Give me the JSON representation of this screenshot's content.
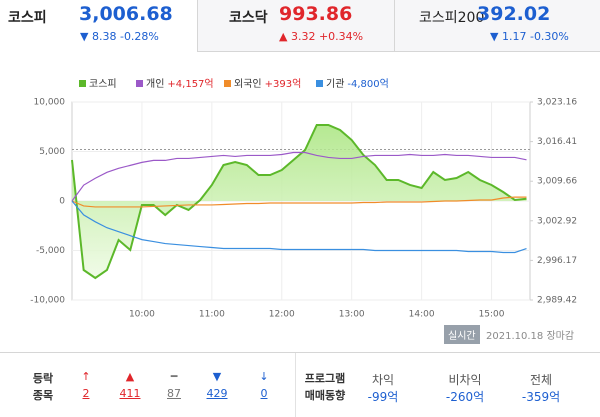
{
  "tabs": [
    {
      "name": "코스피",
      "value": "3,006.68",
      "arrow": "▼",
      "change": "8.38",
      "rate": "-0.28%",
      "color": "#1d5fd0"
    },
    {
      "name": "코스닥",
      "value": "993.86",
      "arrow": "▲",
      "change": "3.32",
      "rate": "+0.34%",
      "color": "#e0262b"
    },
    {
      "name": "코스피200",
      "value": "392.02",
      "arrow": "▼",
      "change": "1.17",
      "rate": "-0.30%",
      "color": "#1d5fd0"
    }
  ],
  "chart_data": {
    "type": "line",
    "x": [
      "09:00",
      "09:10",
      "09:20",
      "09:30",
      "09:40",
      "09:50",
      "10:00",
      "10:10",
      "10:20",
      "10:30",
      "10:40",
      "10:50",
      "11:00",
      "11:10",
      "11:20",
      "11:30",
      "11:40",
      "11:50",
      "12:00",
      "12:10",
      "12:20",
      "12:30",
      "12:40",
      "12:50",
      "13:00",
      "13:10",
      "13:20",
      "13:30",
      "13:40",
      "13:50",
      "14:00",
      "14:10",
      "14:20",
      "14:30",
      "14:40",
      "14:50",
      "15:00",
      "15:10",
      "15:20",
      "15:30"
    ],
    "xlim": [
      "09:00",
      "15:33"
    ],
    "xticks": [
      "10:00",
      "11:00",
      "12:00",
      "13:00",
      "14:00",
      "15:00"
    ],
    "ylim": [
      -10000,
      10000
    ],
    "yticks": [
      {
        "value": 10000,
        "label": "10,000"
      },
      {
        "value": 5000,
        "label": "5,000"
      },
      0,
      {
        "value": -5000,
        "label": "-5,000"
      },
      {
        "value": -10000,
        "label": "-10,000"
      }
    ],
    "y2lim": [
      2989.42,
      3023.16
    ],
    "y2ticks": [
      {
        "value": 3023.16,
        "label": "3,023.16"
      },
      {
        "value": 3016.41,
        "label": "3,016.41"
      },
      {
        "value": 3009.66,
        "label": "3,009.66"
      },
      {
        "value": 3002.92,
        "label": "3,002.92"
      },
      {
        "value": 2996.17,
        "label": "2,996.17"
      },
      {
        "value": 2989.42,
        "label": "2,989.42"
      }
    ],
    "y2_reference": 3015.06,
    "grid": true,
    "series": [
      {
        "name": "코스피",
        "color": "#5cb82a",
        "axis": "y2",
        "fill": true,
        "values": [
          3013.28,
          2994.53,
          2993.17,
          2994.53,
          2999.64,
          2997.94,
          3005.61,
          3005.61,
          3003.9,
          3005.61,
          3004.76,
          3006.46,
          3009.02,
          3012.42,
          3012.94,
          3012.42,
          3010.72,
          3010.72,
          3011.57,
          3013.28,
          3014.98,
          3019.24,
          3019.24,
          3018.39,
          3016.68,
          3014.13,
          3012.42,
          3009.87,
          3009.87,
          3009.02,
          3008.51,
          3011.23,
          3009.87,
          3010.21,
          3011.23,
          3009.87,
          3009.02,
          3007.82,
          3006.46,
          3006.68
        ]
      },
      {
        "name": "개인",
        "total": "+4,157억",
        "total_color": "#e0262b",
        "color": "#9b59c8",
        "values": [
          0,
          1600,
          2300,
          2900,
          3300,
          3600,
          3900,
          4100,
          4100,
          4300,
          4300,
          4400,
          4500,
          4600,
          4500,
          4600,
          4600,
          4600,
          4700,
          4900,
          4900,
          4600,
          4400,
          4300,
          4300,
          4500,
          4600,
          4600,
          4600,
          4700,
          4600,
          4600,
          4700,
          4600,
          4600,
          4500,
          4400,
          4400,
          4400,
          4157
        ]
      },
      {
        "name": "외국인",
        "total": "+393억",
        "total_color": "#e0262b",
        "color": "#f08c2a",
        "values": [
          0,
          -500,
          -600,
          -600,
          -600,
          -600,
          -600,
          -550,
          -500,
          -450,
          -400,
          -400,
          -400,
          -350,
          -300,
          -250,
          -250,
          -200,
          -200,
          -200,
          -200,
          -200,
          -200,
          -200,
          -200,
          -150,
          -150,
          -100,
          -100,
          -100,
          -100,
          -50,
          0,
          0,
          50,
          100,
          100,
          300,
          400,
          393
        ]
      },
      {
        "name": "기관",
        "total": "-4,800억",
        "total_color": "#1d5fd0",
        "color": "#3a8fe0",
        "values": [
          0,
          -1400,
          -2100,
          -2700,
          -3100,
          -3500,
          -3900,
          -4100,
          -4300,
          -4400,
          -4500,
          -4600,
          -4700,
          -4800,
          -4800,
          -4800,
          -4800,
          -4800,
          -4900,
          -4900,
          -4900,
          -4900,
          -4900,
          -4900,
          -4900,
          -4900,
          -5000,
          -5000,
          -5000,
          -5000,
          -5000,
          -5000,
          -5000,
          -5000,
          -5100,
          -5100,
          -5100,
          -5200,
          -5200,
          -4800
        ]
      }
    ]
  },
  "status": {
    "badge": "실시간",
    "date": "2021.10.18",
    "state": "장마감"
  },
  "breadth": {
    "label": [
      "등락",
      "종목"
    ],
    "items": [
      {
        "icon": "↑",
        "count": 2,
        "color": "#e0262b"
      },
      {
        "icon": "▲",
        "count": 411,
        "color": "#e0262b"
      },
      {
        "icon": "━",
        "count": 87,
        "color": "#777777"
      },
      {
        "icon": "▼",
        "count": 429,
        "color": "#1d5fd0"
      },
      {
        "icon": "↓",
        "count": 0,
        "color": "#1d5fd0"
      }
    ]
  },
  "program": {
    "label": [
      "프로그램",
      "매매동향"
    ],
    "items": [
      {
        "label": "차익",
        "value": "-99억"
      },
      {
        "label": "비차익",
        "value": "-260억"
      },
      {
        "label": "전체",
        "value": "-359억"
      }
    ],
    "color": "#1d5fd0"
  }
}
